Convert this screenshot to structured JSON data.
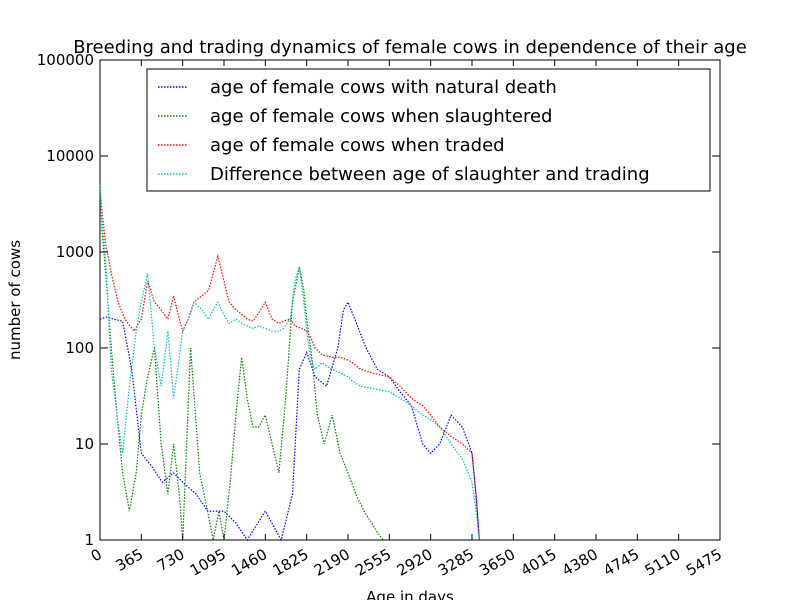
{
  "chart_data": {
    "type": "line",
    "title": "Breeding and trading dynamics of female cows in dependence of their age",
    "xlabel": "Age in days",
    "ylabel": "number of cows",
    "xlim": [
      0,
      5475
    ],
    "ylim": [
      1,
      100000
    ],
    "yscale": "log",
    "xticks": [
      0,
      365,
      730,
      1095,
      1460,
      1825,
      2190,
      2555,
      2920,
      3285,
      3650,
      4015,
      4380,
      4745,
      5110,
      5475
    ],
    "xtick_labels": [
      "0",
      "365",
      "730",
      "1095",
      "1460",
      "1825",
      "2190",
      "2555",
      "2920",
      "3285",
      "3650",
      "4015",
      "4380",
      "4745",
      "5110",
      "5475"
    ],
    "yticks": [
      1,
      10,
      100,
      1000,
      10000,
      100000
    ],
    "ytick_labels": [
      "1",
      "10",
      "100",
      "1000",
      "10000",
      "100000"
    ],
    "grid": false,
    "legend_position": "top-right",
    "series": [
      {
        "name": "age of female cows with natural death",
        "color": "#0000ff",
        "style": "dotted",
        "x": [
          0,
          60,
          120,
          200,
          280,
          365,
          450,
          550,
          650,
          730,
          850,
          950,
          1095,
          1200,
          1300,
          1460,
          1600,
          1700,
          1760,
          1825,
          1900,
          2000,
          2100,
          2150,
          2190,
          2250,
          2350,
          2450,
          2555,
          2650,
          2750,
          2850,
          2920,
          3000,
          3100,
          3200,
          3285,
          3320,
          3350
        ],
        "y": [
          200,
          210,
          200,
          190,
          60,
          8,
          6,
          4,
          5,
          4,
          3,
          2,
          2,
          1.5,
          1,
          2,
          1,
          3,
          60,
          90,
          50,
          40,
          100,
          250,
          300,
          200,
          100,
          60,
          50,
          35,
          25,
          10,
          8,
          10,
          20,
          15,
          8,
          3,
          1
        ]
      },
      {
        "name": "age of female cows when slaughtered",
        "color": "#008000",
        "style": "dotted",
        "x": [
          0,
          20,
          50,
          100,
          150,
          200,
          260,
          320,
          365,
          420,
          480,
          540,
          600,
          650,
          700,
          730,
          800,
          880,
          950,
          1000,
          1050,
          1095,
          1150,
          1200,
          1250,
          1300,
          1350,
          1400,
          1460,
          1520,
          1580,
          1640,
          1700,
          1760,
          1800,
          1825,
          1870,
          1920,
          1980,
          2050,
          2120,
          2190,
          2260,
          2330,
          2400,
          2450,
          2500
        ],
        "y": [
          5000,
          1500,
          600,
          100,
          20,
          5,
          2,
          5,
          20,
          50,
          100,
          10,
          3,
          10,
          3,
          1,
          100,
          5,
          2,
          1,
          2,
          1,
          4,
          20,
          80,
          30,
          15,
          15,
          20,
          10,
          5,
          30,
          300,
          700,
          400,
          200,
          80,
          20,
          10,
          20,
          8,
          5,
          3,
          2,
          1.5,
          1.2,
          1
        ]
      },
      {
        "name": "age of female cows when traded",
        "color": "#ff0000",
        "style": "dotted",
        "x": [
          0,
          20,
          50,
          100,
          160,
          220,
          300,
          365,
          420,
          480,
          540,
          600,
          650,
          700,
          730,
          780,
          830,
          900,
          960,
          1000,
          1040,
          1095,
          1140,
          1200,
          1260,
          1300,
          1350,
          1400,
          1460,
          1520,
          1580,
          1620,
          1680,
          1720,
          1780,
          1825,
          1860,
          1900,
          1960,
          2050,
          2120,
          2190,
          2230,
          2300,
          2400,
          2555,
          2650,
          2750,
          2850,
          2920,
          3000,
          3100,
          3200,
          3285,
          3320,
          3350
        ],
        "y": [
          5000,
          2500,
          1200,
          600,
          300,
          200,
          150,
          200,
          500,
          300,
          250,
          200,
          350,
          200,
          150,
          200,
          300,
          350,
          400,
          600,
          900,
          500,
          300,
          250,
          220,
          200,
          190,
          230,
          300,
          200,
          180,
          190,
          200,
          170,
          160,
          150,
          130,
          100,
          85,
          80,
          80,
          75,
          70,
          60,
          55,
          50,
          40,
          30,
          25,
          20,
          15,
          12,
          10,
          8,
          3,
          1
        ]
      },
      {
        "name": "Difference between age of slaughter and trading",
        "color": "#00bfbf",
        "style": "dotted",
        "x": [
          0,
          20,
          50,
          100,
          150,
          200,
          260,
          320,
          365,
          420,
          480,
          540,
          600,
          650,
          700,
          730,
          780,
          830,
          900,
          960,
          1000,
          1040,
          1095,
          1140,
          1200,
          1260,
          1300,
          1350,
          1400,
          1460,
          1520,
          1580,
          1620,
          1680,
          1720,
          1760,
          1800,
          1825,
          1860,
          1900,
          1960,
          2050,
          2120,
          2190,
          2230,
          2300,
          2400,
          2555,
          2650,
          2750,
          2850,
          2920,
          3000,
          3100,
          3200,
          3285,
          3320,
          3350
        ],
        "y": [
          5000,
          2000,
          800,
          60,
          20,
          8,
          40,
          150,
          300,
          600,
          100,
          40,
          150,
          30,
          80,
          150,
          200,
          300,
          250,
          200,
          250,
          300,
          220,
          180,
          200,
          180,
          170,
          160,
          170,
          160,
          150,
          150,
          160,
          200,
          500,
          700,
          300,
          150,
          80,
          60,
          70,
          60,
          55,
          50,
          45,
          40,
          38,
          35,
          30,
          25,
          20,
          18,
          15,
          10,
          7,
          4,
          2,
          1
        ]
      }
    ]
  }
}
